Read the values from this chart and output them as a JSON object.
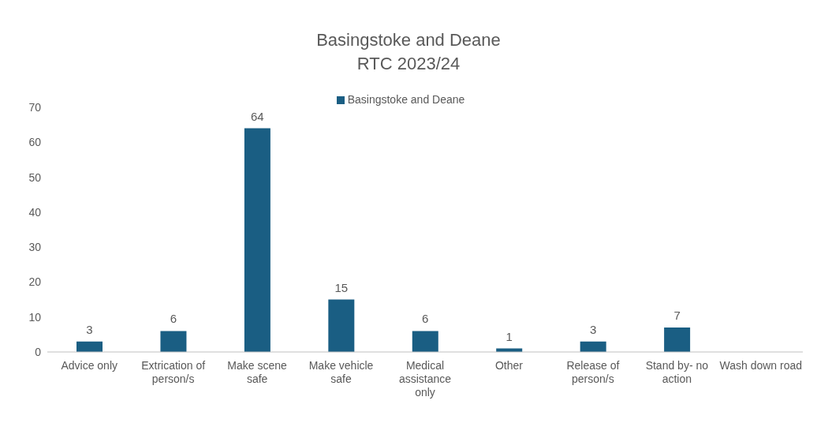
{
  "chart_data": {
    "type": "bar",
    "title": "Basingstoke and Deane\nRTC 2023/24",
    "categories": [
      "Advice only",
      "Extrication of person/s",
      "Make scene safe",
      "Make vehicle safe",
      "Medical assistance only",
      "Other",
      "Release of person/s",
      "Stand by- no action",
      "Wash down road"
    ],
    "series": [
      {
        "name": "Basingstoke and Deane",
        "color": "#1a5e83",
        "values": [
          3,
          6,
          64,
          15,
          6,
          1,
          3,
          7,
          null
        ],
        "value_labels": [
          "3",
          "6",
          "64",
          "15",
          "6",
          "1",
          "3",
          "7",
          null
        ]
      }
    ],
    "ylim": [
      0,
      70
    ],
    "yticks": [
      0,
      10,
      20,
      30,
      40,
      50,
      60,
      70
    ],
    "grid": false,
    "legend": "top"
  }
}
